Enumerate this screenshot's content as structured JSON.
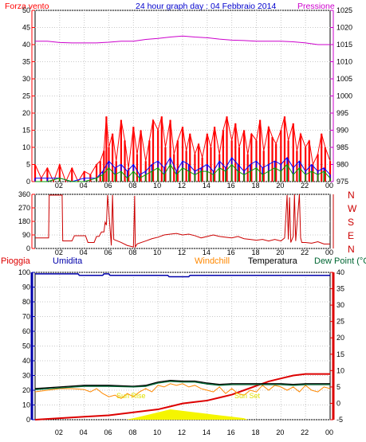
{
  "header": {
    "wind_label": "Forza vento",
    "title": "24 hour graph day : 04 Febbraio 2014",
    "pressure_label": "Pressione"
  },
  "bottom_header": {
    "rain_label": "Pioggia",
    "humidity_label": "Umidita",
    "windchill_label": "Windchill",
    "temperature_label": "Temperatura",
    "dewpoint_label": "Dew Point (°C"
  },
  "annotations": {
    "sunrise": "Sun Rise",
    "sunset": "Sun Set"
  },
  "colors": {
    "background": "#ffffff",
    "axis": "#000000",
    "grid": "#c8c8c8",
    "wind": "#ff0000",
    "gust": "#0000ff",
    "wind_avg": "#00a000",
    "pressure": "#cc00cc",
    "direction": "#cc0000",
    "rain": "#dd0000",
    "humidity": "#0000aa",
    "windchill": "#ff8800",
    "temperature": "#000000",
    "dewpoint": "#006633",
    "sunbar": "#f5f500"
  },
  "chart_data": [
    {
      "type": "line",
      "title": "24 hour graph day : 04 Febbraio 2014",
      "x_ticks": [
        "02",
        "04",
        "06",
        "08",
        "10",
        "12",
        "14",
        "16",
        "18",
        "20",
        "22",
        "00"
      ],
      "xlim": [
        0,
        24
      ],
      "left_axis": {
        "label": "Forza vento",
        "ylim": [
          0,
          50
        ],
        "ticks": [
          0,
          5,
          10,
          15,
          20,
          25,
          30,
          35,
          40,
          45,
          50
        ]
      },
      "right_axis": {
        "label": "Pressione",
        "ylim": [
          975,
          1025
        ],
        "ticks": [
          975,
          980,
          985,
          990,
          995,
          1000,
          1005,
          1010,
          1015,
          1020,
          1025
        ]
      },
      "grid": true,
      "series": [
        {
          "name": "Pressione",
          "axis": "right",
          "x": [
            0,
            1,
            2,
            3,
            4,
            5,
            6,
            7,
            8,
            9,
            10,
            11,
            12,
            13,
            14,
            15,
            16,
            17,
            18,
            19,
            20,
            21,
            22,
            23,
            24
          ],
          "values": [
            1016,
            1016,
            1015.6,
            1015.5,
            1015.5,
            1015.5,
            1015.7,
            1016,
            1016,
            1016.5,
            1016.8,
            1017.2,
            1017.5,
            1017.2,
            1017,
            1016.6,
            1016.3,
            1016.2,
            1016,
            1016,
            1016,
            1015.8,
            1015.5,
            1015,
            1015
          ]
        },
        {
          "name": "wind-gust",
          "axis": "left",
          "x": [
            0,
            0.5,
            1,
            1.5,
            2,
            2.5,
            3,
            3.5,
            4,
            4.5,
            5,
            5.3,
            5.6,
            5.8,
            6,
            6.3,
            6.6,
            7,
            7.3,
            7.6,
            8,
            8.3,
            8.6,
            9,
            9.3,
            9.6,
            10,
            10.3,
            10.6,
            11,
            11.3,
            11.6,
            12,
            12.3,
            12.6,
            13,
            13.3,
            13.6,
            14,
            14.3,
            14.6,
            15,
            15.3,
            15.6,
            16,
            16.3,
            16.6,
            17,
            17.3,
            17.6,
            18,
            18.3,
            18.6,
            19,
            19.3,
            19.6,
            20,
            20.3,
            20.6,
            21,
            21.3,
            21.6,
            22,
            22.3,
            22.6,
            23,
            23.3,
            23.6,
            24
          ],
          "values": [
            5,
            1,
            4,
            0,
            5,
            0,
            4,
            0,
            3,
            2,
            5,
            6,
            9,
            19,
            10,
            14,
            6,
            18,
            12,
            4,
            16,
            8,
            15,
            6,
            12,
            18,
            15,
            19,
            10,
            18,
            8,
            12,
            16,
            9,
            14,
            8,
            11,
            7,
            14,
            10,
            16,
            8,
            15,
            19,
            12,
            17,
            10,
            15,
            8,
            14,
            12,
            18,
            9,
            16,
            13,
            11,
            15,
            19,
            12,
            17,
            9,
            14,
            10,
            12,
            5,
            8,
            14,
            10,
            6
          ]
        },
        {
          "name": "wind-speed",
          "axis": "left",
          "x": [
            0,
            1,
            2,
            3,
            4,
            5,
            5.5,
            6,
            6.5,
            7,
            7.5,
            8,
            8.5,
            9,
            9.5,
            10,
            10.5,
            11,
            11.5,
            12,
            12.5,
            13,
            13.5,
            14,
            14.5,
            15,
            15.5,
            16,
            16.5,
            17,
            17.5,
            18,
            18.5,
            19,
            19.5,
            20,
            20.5,
            21,
            21.5,
            22,
            22.5,
            23,
            23.5,
            24
          ],
          "values": [
            1,
            1,
            1,
            0,
            1,
            1,
            3,
            6,
            4,
            5,
            3,
            5,
            2,
            3,
            5,
            6,
            4,
            7,
            3,
            6,
            5,
            3,
            4,
            5,
            3,
            6,
            4,
            7,
            5,
            3,
            5,
            6,
            4,
            5,
            6,
            5,
            7,
            4,
            6,
            3,
            5,
            3,
            4,
            2
          ]
        },
        {
          "name": "wind-avg",
          "axis": "left",
          "x": [
            0,
            1,
            2,
            3,
            4,
            5,
            5.5,
            6,
            6.5,
            7,
            7.5,
            8,
            8.5,
            9,
            9.5,
            10,
            10.5,
            11,
            11.5,
            12,
            12.5,
            13,
            13.5,
            14,
            14.5,
            15,
            15.5,
            16,
            16.5,
            17,
            17.5,
            18,
            18.5,
            19,
            19.5,
            20,
            20.5,
            21,
            21.5,
            22,
            22.5,
            23,
            23.5,
            24
          ],
          "values": [
            0,
            0,
            1,
            0,
            0,
            1,
            2,
            4,
            2,
            3,
            1,
            3,
            1,
            2,
            3,
            4,
            2,
            5,
            2,
            4,
            3,
            2,
            3,
            3,
            2,
            4,
            3,
            5,
            3,
            2,
            3,
            4,
            2,
            3,
            4,
            3,
            5,
            2,
            4,
            2,
            3,
            2,
            3,
            1
          ]
        }
      ]
    },
    {
      "type": "line",
      "title": "",
      "x_ticks": [
        "02",
        "04",
        "06",
        "08",
        "10",
        "12",
        "14",
        "16",
        "18",
        "20",
        "22",
        "00"
      ],
      "xlim": [
        0,
        24
      ],
      "left_axis": {
        "label": "",
        "ylim": [
          0,
          360
        ],
        "ticks": [
          0,
          90,
          180,
          270,
          360
        ]
      },
      "right_axis": {
        "label": "",
        "ticks": [
          "N",
          "W",
          "S",
          "E",
          "N"
        ]
      },
      "grid": true,
      "series": [
        {
          "name": "wind-direction",
          "x": [
            0,
            1.1,
            1.15,
            2.2,
            2.25,
            3,
            3.2,
            4.1,
            4.3,
            4.8,
            5.0,
            5.2,
            5.4,
            5.6,
            5.7,
            5.8,
            5.9,
            6.2,
            6.3,
            6.4,
            7,
            7.5,
            8,
            8.1,
            8.15,
            8.3,
            9,
            9.5,
            10,
            10.5,
            11,
            11.5,
            12,
            12.5,
            13,
            13.5,
            14,
            14.5,
            15,
            15.5,
            16,
            16.5,
            17,
            17.5,
            18,
            18.5,
            19,
            19.5,
            20,
            20.3,
            20.5,
            20.6,
            20.7,
            20.8,
            21,
            21.1,
            21.2,
            21.5,
            21.6,
            21.7,
            22,
            22.5,
            23,
            23.5,
            24
          ],
          "values": [
            70,
            70,
            355,
            355,
            50,
            50,
            85,
            85,
            40,
            40,
            80,
            80,
            110,
            110,
            175,
            155,
            355,
            20,
            355,
            60,
            40,
            20,
            10,
            350,
            10,
            30,
            50,
            65,
            75,
            90,
            95,
            100,
            90,
            95,
            85,
            70,
            80,
            90,
            80,
            75,
            70,
            80,
            65,
            60,
            55,
            60,
            50,
            60,
            50,
            70,
            355,
            60,
            340,
            40,
            80,
            360,
            50,
            360,
            70,
            40,
            40,
            35,
            45,
            30,
            30
          ]
        }
      ]
    },
    {
      "type": "line",
      "title": "",
      "x_ticks": [
        "02",
        "04",
        "06",
        "08",
        "10",
        "12",
        "14",
        "16",
        "18",
        "20",
        "22",
        "00"
      ],
      "xlim": [
        0,
        24
      ],
      "left_axis": {
        "label": "Pioggia",
        "ylim": [
          0,
          100
        ],
        "ticks": [
          0,
          10,
          20,
          30,
          40,
          50,
          60,
          70,
          80,
          90,
          100
        ]
      },
      "right_axis": {
        "label": "Dew Point (°C",
        "ylim": [
          -5,
          40
        ],
        "ticks": [
          -5,
          0,
          5,
          10,
          15,
          20,
          25,
          30,
          35,
          40
        ]
      },
      "grid": true,
      "series": [
        {
          "name": "Umidita",
          "axis": "left",
          "x": [
            0,
            3.5,
            3.6,
            5.5,
            5.6,
            6.0,
            6.1,
            10.8,
            10.9,
            12.5,
            12.6,
            24
          ],
          "values": [
            99,
            99,
            98,
            98,
            99,
            99,
            98,
            98,
            97,
            97,
            98,
            98
          ]
        },
        {
          "name": "Pioggia",
          "axis": "left",
          "x": [
            0,
            2,
            4,
            6,
            8,
            9,
            10,
            11,
            12,
            13,
            14,
            15,
            16,
            17,
            18,
            19,
            20,
            21,
            22,
            23,
            23.1,
            24
          ],
          "values": [
            0,
            1,
            2,
            3,
            5,
            6,
            7,
            9,
            11,
            12,
            13,
            15,
            17,
            20,
            23,
            26,
            28,
            30,
            31,
            31,
            31,
            31
          ]
        },
        {
          "name": "Windchill",
          "axis": "right",
          "x": [
            0,
            1,
            2,
            3,
            4,
            4.5,
            5,
            5.5,
            6,
            6.5,
            7,
            7.5,
            8,
            8.5,
            9,
            9.5,
            10,
            10.5,
            11,
            11.5,
            12,
            12.5,
            13,
            13.5,
            14,
            14.5,
            15,
            15.5,
            16,
            16.5,
            17,
            17.5,
            18,
            18.5,
            19,
            19.5,
            20,
            20.5,
            21,
            21.5,
            22,
            22.5,
            23,
            23.5,
            24
          ],
          "values": [
            3.5,
            4,
            4.5,
            4.5,
            4.2,
            3.5,
            4.5,
            3,
            2,
            2.5,
            1.5,
            3,
            2,
            3.5,
            4.5,
            3.5,
            5.5,
            5,
            6,
            5.5,
            6,
            5,
            5.5,
            4.5,
            4,
            3.5,
            5,
            3,
            4.5,
            3,
            2.5,
            4,
            3.5,
            5.5,
            4,
            5.5,
            5,
            4,
            5,
            3.5,
            5.5,
            4,
            3.5,
            5,
            4.5
          ]
        },
        {
          "name": "Temperatura",
          "axis": "right",
          "x": [
            0,
            2,
            4,
            6,
            8,
            9,
            10,
            11,
            12,
            13,
            14,
            15,
            16,
            17,
            18,
            19,
            20,
            21,
            22,
            23,
            24
          ],
          "values": [
            4.5,
            5,
            5.5,
            5.5,
            5.2,
            5.5,
            6.5,
            7,
            6.8,
            6.8,
            6.2,
            5.8,
            6,
            6,
            6,
            6,
            6,
            5.8,
            6,
            6,
            6
          ]
        },
        {
          "name": "Dew Point (°C",
          "axis": "right",
          "x": [
            0,
            2,
            4,
            6,
            8,
            9,
            10,
            11,
            12,
            13,
            14,
            15,
            16,
            17,
            18,
            19,
            20,
            21,
            22,
            23,
            24
          ],
          "values": [
            4.2,
            4.7,
            5.2,
            5.2,
            5,
            5.2,
            6.2,
            6.7,
            6.5,
            6.5,
            5.9,
            5.5,
            5.7,
            5.7,
            5.7,
            5.7,
            5.7,
            5.5,
            5.7,
            5.7,
            5.7
          ]
        },
        {
          "name": "sun",
          "axis": "left",
          "x": [
            7.4,
            8,
            9,
            10,
            10.5,
            11,
            12,
            13,
            14,
            15,
            16,
            17,
            17.3
          ],
          "values": [
            0,
            1,
            3,
            5,
            6,
            7,
            6,
            5,
            4,
            3,
            2,
            1,
            0
          ]
        }
      ]
    }
  ]
}
